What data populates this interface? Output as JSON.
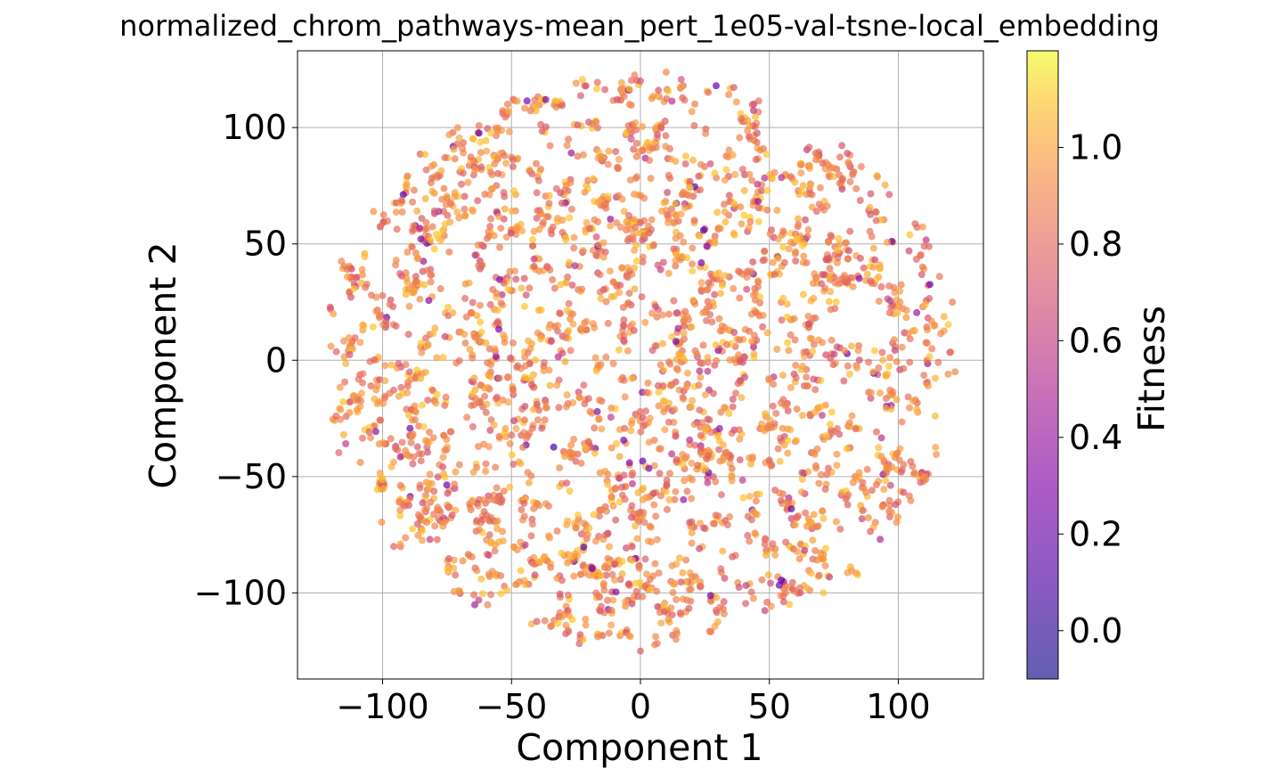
{
  "chart_data": {
    "type": "scatter",
    "title": "normalized_chrom_pathways-mean_pert_1e05-val-tsne-local_embedding",
    "xlabel": "Component 1",
    "ylabel": "Component 2",
    "xlim": [
      -133,
      133
    ],
    "ylim": [
      -137,
      133
    ],
    "xticks": [
      -100,
      -50,
      0,
      50,
      100
    ],
    "yticks": [
      -100,
      -50,
      0,
      50,
      100
    ],
    "xtick_labels": [
      "−100",
      "−50",
      "0",
      "50",
      "100"
    ],
    "ytick_labels": [
      "−100",
      "−50",
      "0",
      "50",
      "100"
    ],
    "grid": true,
    "point_cloud": {
      "shape": "disc",
      "center": [
        0,
        0
      ],
      "radius": 122,
      "count": 3000,
      "fitness_mean": 0.9,
      "fitness_range": [
        0.1,
        1.1
      ]
    },
    "sample_points": [
      {
        "x": 0,
        "y": 120,
        "fitness": 0.7
      },
      {
        "x": -120,
        "y": 6,
        "fitness": 0.95
      },
      {
        "x": 122,
        "y": -5,
        "fitness": 0.9
      },
      {
        "x": 0,
        "y": -125,
        "fitness": 0.75
      },
      {
        "x": -118,
        "y": -24,
        "fitness": 0.8
      },
      {
        "x": 116,
        "y": 36,
        "fitness": 0.85
      },
      {
        "x": 93,
        "y": -77,
        "fitness": 0.5
      },
      {
        "x": -9,
        "y": 112,
        "fitness": 0.7
      }
    ],
    "colorbar": {
      "label": "Fitness",
      "colormap": "plasma",
      "alpha": 0.7,
      "range": [
        -0.1,
        1.2
      ],
      "ticks": [
        0.0,
        0.2,
        0.4,
        0.6,
        0.8,
        1.0
      ],
      "tick_labels": [
        "0.0",
        "0.2",
        "0.4",
        "0.6",
        "0.8",
        "1.0"
      ]
    }
  }
}
